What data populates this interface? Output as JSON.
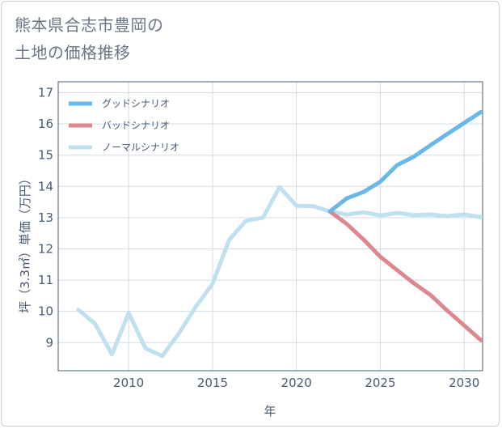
{
  "title_line1": "熊本県合志市豊岡の",
  "title_line2": "土地の価格推移",
  "chart_data": {
    "type": "line",
    "title": "熊本県合志市豊岡の土地の価格推移",
    "xlabel": "年",
    "ylabel": "坪（3.3㎡）単価（万円）",
    "xlim": [
      2005.8,
      2031.1
    ],
    "ylim": [
      8.1,
      17.35
    ],
    "xticks": [
      2010,
      2015,
      2020,
      2025,
      2030
    ],
    "yticks": [
      9,
      10,
      11,
      12,
      13,
      14,
      15,
      16,
      17
    ],
    "legend_position": "top-left",
    "series": [
      {
        "name": "グッドシナリオ",
        "color": "#6ab7ea",
        "x": [
          2022,
          2023,
          2024,
          2025,
          2026,
          2027,
          2028,
          2029,
          2030,
          2031
        ],
        "y": [
          13.2,
          13.62,
          13.82,
          14.15,
          14.68,
          14.95,
          15.32,
          15.68,
          16.03,
          16.38
        ]
      },
      {
        "name": "バッドシナリオ",
        "color": "#dd8890",
        "x": [
          2022,
          2023,
          2024,
          2025,
          2026,
          2027,
          2028,
          2029,
          2030,
          2031
        ],
        "y": [
          13.2,
          12.8,
          12.3,
          11.75,
          11.32,
          10.9,
          10.52,
          10.02,
          9.55,
          9.08
        ]
      },
      {
        "name": "ノーマルシナリオ",
        "color": "#bfe0ef",
        "x": [
          2007,
          2008,
          2009,
          2010,
          2011,
          2012,
          2013,
          2014,
          2015,
          2016,
          2017,
          2018,
          2019,
          2020,
          2021,
          2022,
          2023,
          2024,
          2025,
          2026,
          2027,
          2028,
          2029,
          2030,
          2031
        ],
        "y": [
          10.05,
          9.6,
          8.62,
          9.95,
          8.82,
          8.57,
          9.3,
          10.15,
          10.88,
          12.3,
          12.9,
          13.0,
          13.98,
          13.38,
          13.37,
          13.2,
          13.1,
          13.17,
          13.07,
          13.15,
          13.08,
          13.1,
          13.05,
          13.1,
          13.02
        ]
      }
    ]
  }
}
